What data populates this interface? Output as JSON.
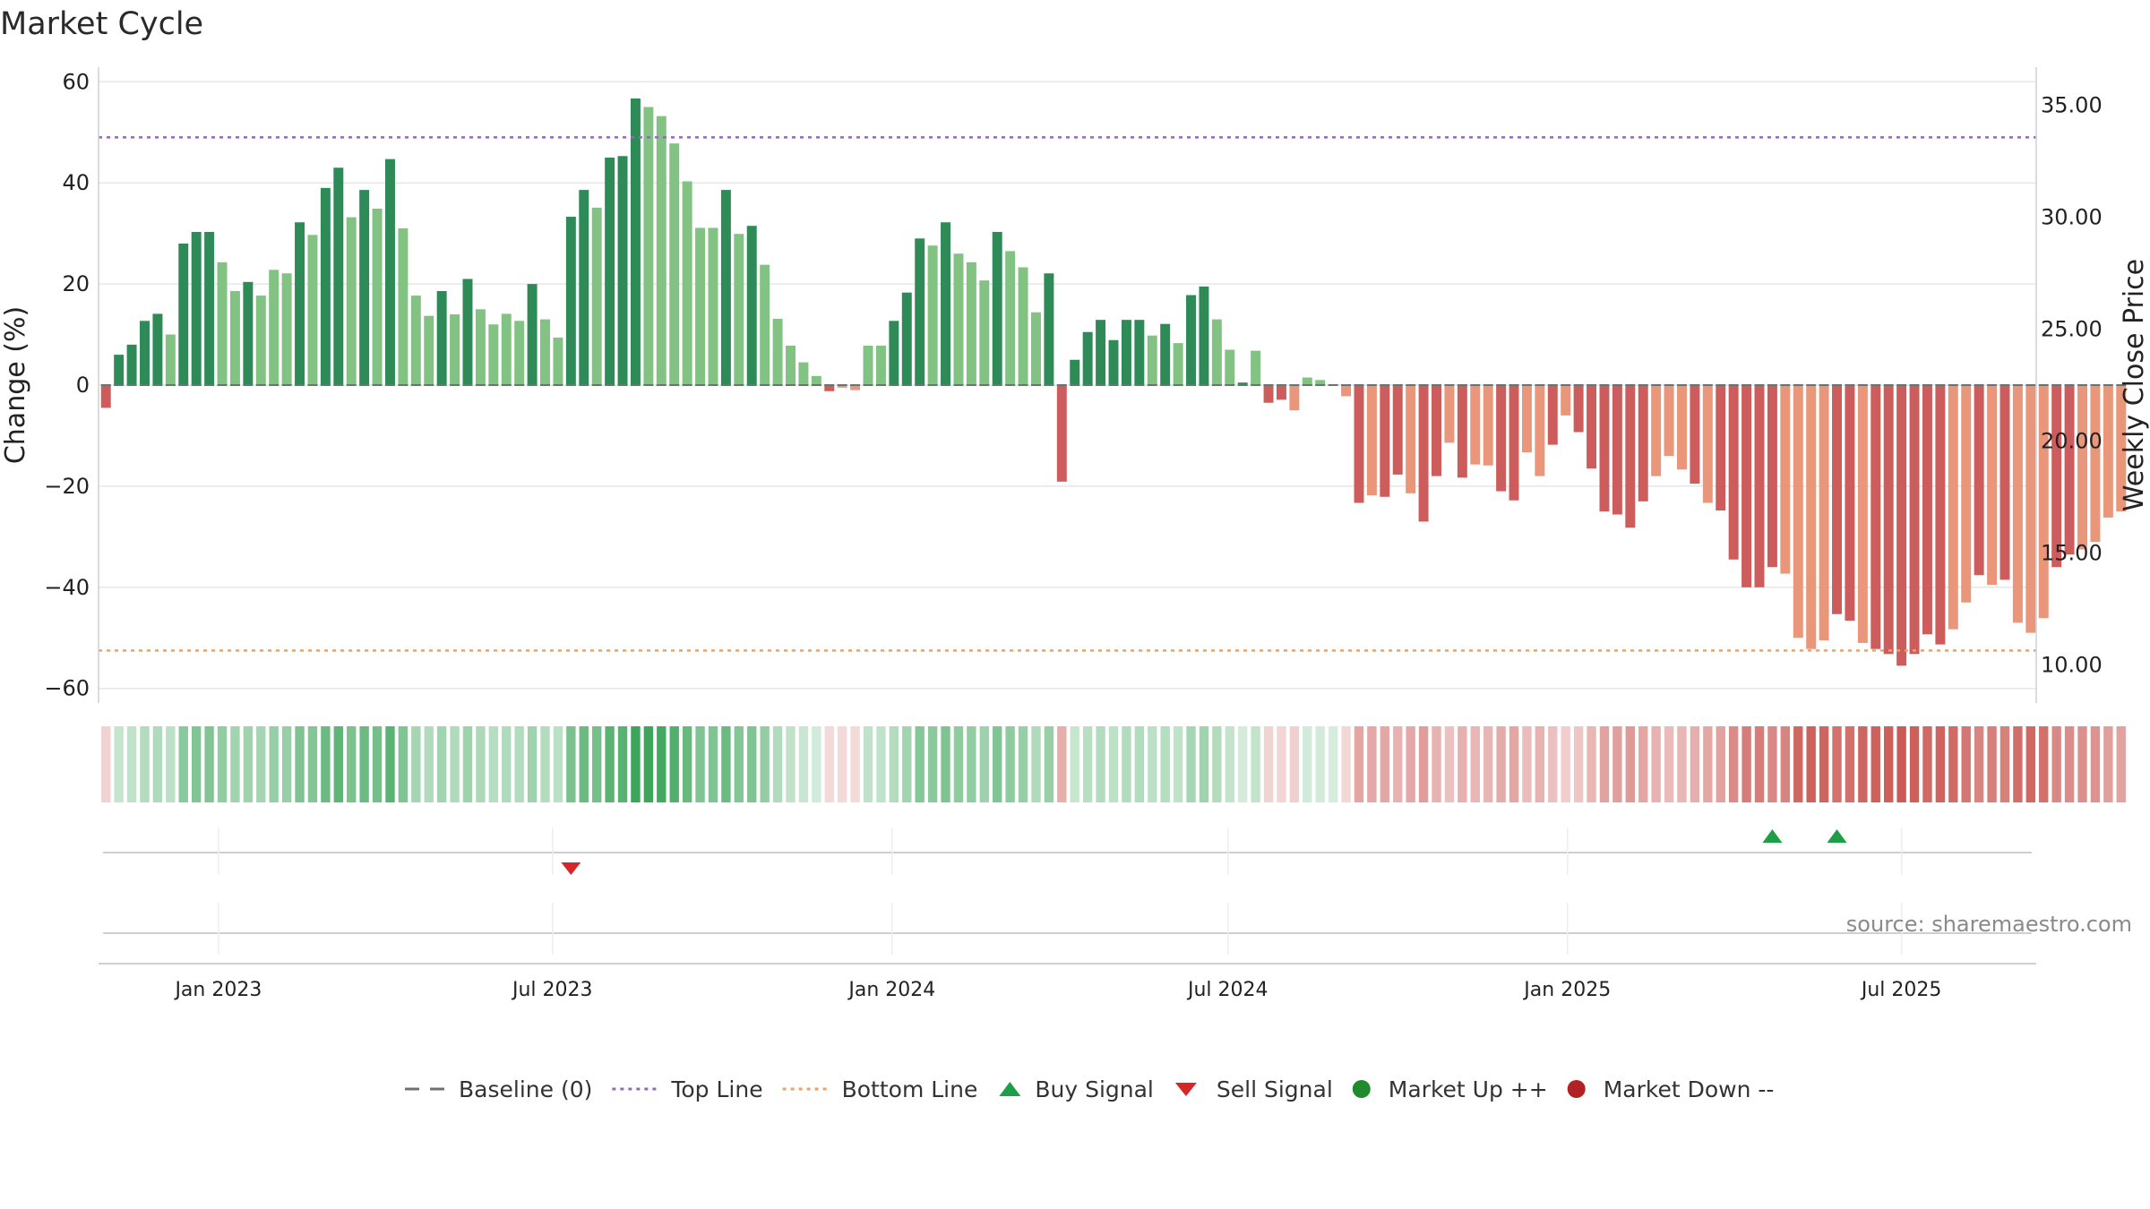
{
  "title": "Market Cycle",
  "source": "source: sharemaestro.com",
  "chart_data": {
    "type": "bar",
    "title": "Market Cycle",
    "ylabel": "Change (%)",
    "y2label": "Weekly Close Price",
    "ylim": [
      -62,
      62
    ],
    "y2lim": [
      8.5,
      36.5
    ],
    "yticks": [
      60,
      40,
      20,
      0,
      -20,
      -40,
      -60
    ],
    "ytick_labels": [
      "60",
      "40",
      "20",
      "0",
      "−20",
      "−40",
      "−60"
    ],
    "y2ticks": [
      35,
      30,
      25,
      20,
      15,
      10
    ],
    "y2tick_labels": [
      "35.00",
      "30.00",
      "25.00",
      "20.00",
      "15.00",
      "10.00"
    ],
    "x_start": "2022-10-28",
    "x_end": "2025-09-12",
    "week_start": "2022-11-01",
    "week_step_days": 7,
    "xticks": [
      {
        "date": "2023-01-01",
        "label": "Jan 2023"
      },
      {
        "date": "2023-07-01",
        "label": "Jul 2023"
      },
      {
        "date": "2024-01-01",
        "label": "Jan 2024"
      },
      {
        "date": "2024-07-01",
        "label": "Jul 2024"
      },
      {
        "date": "2025-01-01",
        "label": "Jan 2025"
      },
      {
        "date": "2025-07-01",
        "label": "Jul 2025"
      }
    ],
    "values": [
      -4.5,
      6,
      8,
      12.7,
      14.1,
      10,
      28,
      30.3,
      30.3,
      24.3,
      18.6,
      20.4,
      17.7,
      22.8,
      22.1,
      32.2,
      29.7,
      39,
      43,
      33.2,
      38.6,
      34.9,
      44.7,
      31,
      17.7,
      13.7,
      18.6,
      14,
      21,
      15,
      12,
      14.1,
      12.7,
      20,
      13,
      9.4,
      33.3,
      38.6,
      35.1,
      45,
      45.3,
      56.7,
      55,
      53.2,
      47.8,
      40.3,
      31.1,
      31.1,
      38.6,
      29.9,
      31.5,
      23.8,
      13.1,
      7.8,
      4.5,
      1.8,
      -1.2,
      -0.5,
      -1,
      7.8,
      7.8,
      12.7,
      18.3,
      29,
      27.6,
      32.2,
      26,
      24.3,
      20.7,
      30.3,
      26.5,
      23.3,
      14.4,
      22.1,
      -19.1,
      5,
      10.5,
      12.9,
      8.9,
      12.9,
      12.9,
      9.8,
      12.1,
      8.3,
      17.8,
      19.5,
      13,
      7,
      0.5,
      6.8,
      -3.5,
      -2.9,
      -5,
      1.5,
      1,
      0.2,
      -2.2,
      -23.3,
      -21.8,
      -22.1,
      -17.7,
      -21.4,
      -27,
      -18,
      -11.4,
      -18.3,
      -15.7,
      -15.9,
      -21,
      -22.8,
      -13.3,
      -18,
      -11.8,
      -6,
      -9.3,
      -16.5,
      -25,
      -25.6,
      -28.2,
      -23,
      -18,
      -14,
      -16.7,
      -19.5,
      -23.3,
      -24.8,
      -34.5,
      -40,
      -40,
      -36,
      -37.3,
      -50,
      -52.2,
      -50.5,
      -45.3,
      -46.6,
      -51,
      -52.2,
      -53.2,
      -55.5,
      -53.2,
      -49.3,
      -51.3,
      -48.3,
      -43,
      -37.6,
      -39.5,
      -38.5,
      -47,
      -49,
      -46.1,
      -36,
      -33.5,
      -32.5,
      -31,
      -26.2,
      -25
    ],
    "up_emphasis_ranges": [
      [
        1,
        4
      ],
      [
        6,
        8
      ],
      [
        11,
        11
      ],
      [
        15,
        15
      ],
      [
        17,
        18
      ],
      [
        20,
        20
      ],
      [
        22,
        22
      ],
      [
        26,
        26
      ],
      [
        28,
        28
      ],
      [
        33,
        33
      ],
      [
        36,
        37
      ],
      [
        39,
        41
      ],
      [
        48,
        48
      ],
      [
        50,
        50
      ],
      [
        61,
        63
      ],
      [
        65,
        65
      ],
      [
        69,
        69
      ],
      [
        73,
        73
      ],
      [
        75,
        80
      ],
      [
        82,
        82
      ],
      [
        84,
        85
      ],
      [
        88,
        88
      ]
    ],
    "down_emphasis_ranges": [
      [
        0,
        0
      ],
      [
        56,
        56
      ],
      [
        74,
        74
      ],
      [
        89,
        91
      ],
      [
        97,
        97
      ],
      [
        99,
        100
      ],
      [
        102,
        103
      ],
      [
        105,
        105
      ],
      [
        108,
        109
      ],
      [
        112,
        112
      ],
      [
        114,
        119
      ],
      [
        123,
        123
      ],
      [
        125,
        129
      ],
      [
        134,
        135
      ],
      [
        137,
        142
      ],
      [
        145,
        145
      ],
      [
        147,
        147
      ],
      [
        151,
        152
      ]
    ],
    "top_line": 49,
    "bottom_line": -52.5,
    "buy_signals": [
      "2025-04-22",
      "2025-05-27"
    ],
    "sell_signals": [
      "2023-07-11"
    ],
    "legend": [
      {
        "label": "Baseline (0)",
        "symbol": "dash",
        "color": "#707070"
      },
      {
        "label": "Top Line",
        "symbol": "dot",
        "color": "#9467bd"
      },
      {
        "label": "Bottom Line",
        "symbol": "dot",
        "color": "#f0a060"
      },
      {
        "label": "Buy Signal",
        "symbol": "triangle-up",
        "color": "#1f9e48"
      },
      {
        "label": "Sell Signal",
        "symbol": "triangle-down",
        "color": "#d62728"
      },
      {
        "label": "Market Up ++",
        "symbol": "circle",
        "color": "#1f8a2e"
      },
      {
        "label": "Market Down --",
        "symbol": "circle",
        "color": "#b22222"
      }
    ],
    "legend_position": "bottom-center",
    "grid": true
  },
  "colors": {
    "up_strong": "#2e8b57",
    "up_light": "#82c282",
    "down_strong": "#cd5c5c",
    "down_light": "#e9967a",
    "baseline": "#707070",
    "top_line": "#9467bd",
    "bottom_line": "#f0a060",
    "buy": "#1f9e48",
    "sell": "#d62728",
    "grid": "#e6e6e6"
  }
}
